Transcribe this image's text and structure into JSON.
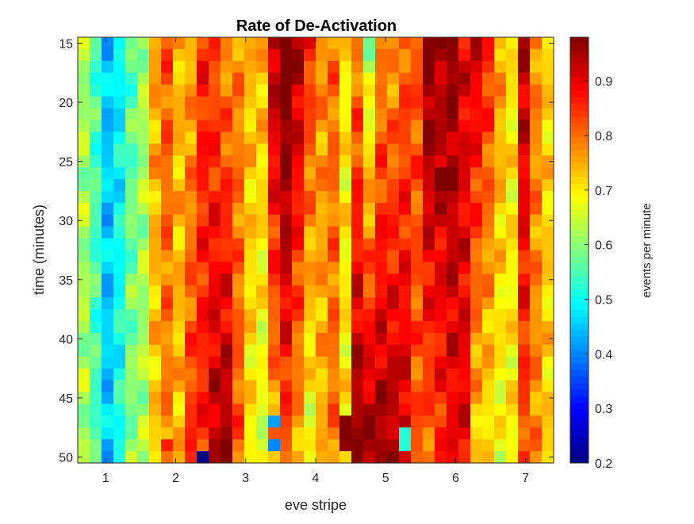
{
  "chart_data": {
    "type": "heatmap",
    "title": "Rate of De-Activation",
    "xlabel": "eve stripe",
    "ylabel": "time (minutes)",
    "colorbar_label": "events per minute",
    "colormap": "jet",
    "xlim": [
      0.6,
      7.4
    ],
    "ylim": [
      14.5,
      50.5
    ],
    "y_direction": "reversed",
    "xticks": [
      1,
      2,
      3,
      4,
      5,
      6,
      7
    ],
    "yticks": [
      15,
      20,
      25,
      30,
      35,
      40,
      45,
      50
    ],
    "clim": [
      0.2,
      0.98
    ],
    "colorbar_ticks": [
      0.2,
      0.3,
      0.4,
      0.5,
      0.6,
      0.7,
      0.8,
      0.9
    ],
    "grid": false,
    "n_columns": 40,
    "x_range": [
      0.6,
      7.4
    ],
    "time_range": [
      15,
      50
    ],
    "time_step": 1,
    "column_profile": [
      0.62,
      0.55,
      0.45,
      0.5,
      0.58,
      0.62,
      0.74,
      0.8,
      0.74,
      0.8,
      0.86,
      0.88,
      0.87,
      0.8,
      0.72,
      0.7,
      0.85,
      0.93,
      0.85,
      0.76,
      0.76,
      0.8,
      0.7,
      0.88,
      0.8,
      0.87,
      0.86,
      0.87,
      0.82,
      0.9,
      0.9,
      0.93,
      0.9,
      0.82,
      0.78,
      0.72,
      0.7,
      0.88,
      0.78,
      0.72
    ],
    "column_trend": [
      0.0,
      0.0,
      0.0,
      0.02,
      0.02,
      0.0,
      -0.02,
      -0.02,
      0.0,
      0.05,
      0.0,
      0.06,
      0.1,
      0.02,
      -0.02,
      -0.05,
      -0.1,
      -0.12,
      -0.1,
      -0.1,
      -0.02,
      0.0,
      0.0,
      0.1,
      0.18,
      0.1,
      0.1,
      0.06,
      0.0,
      -0.1,
      -0.05,
      -0.05,
      0.0,
      -0.1,
      -0.08,
      -0.05,
      0.0,
      -0.06,
      0.0,
      0.0
    ],
    "special_cells": [
      {
        "x": 2.35,
        "t": 50,
        "value": 0.2
      },
      {
        "x": 3.35,
        "t": 47,
        "value": 0.42
      },
      {
        "x": 3.35,
        "t": 49,
        "value": 0.4
      },
      {
        "x": 4.35,
        "t": 47,
        "value": 0.98
      },
      {
        "x": 4.35,
        "t": 48,
        "value": 0.98
      },
      {
        "x": 4.35,
        "t": 49,
        "value": 0.97
      },
      {
        "x": 5.35,
        "t": 48,
        "value": 0.52
      },
      {
        "x": 5.35,
        "t": 49,
        "value": 0.52
      },
      {
        "x": 1.85,
        "t": 49,
        "value": 0.86
      },
      {
        "x": 3.65,
        "t": 24,
        "value": 0.97
      },
      {
        "x": 3.65,
        "t": 25,
        "value": 0.98
      },
      {
        "x": 5.85,
        "t": 26,
        "value": 0.98
      },
      {
        "x": 5.85,
        "t": 27,
        "value": 0.98
      }
    ]
  }
}
